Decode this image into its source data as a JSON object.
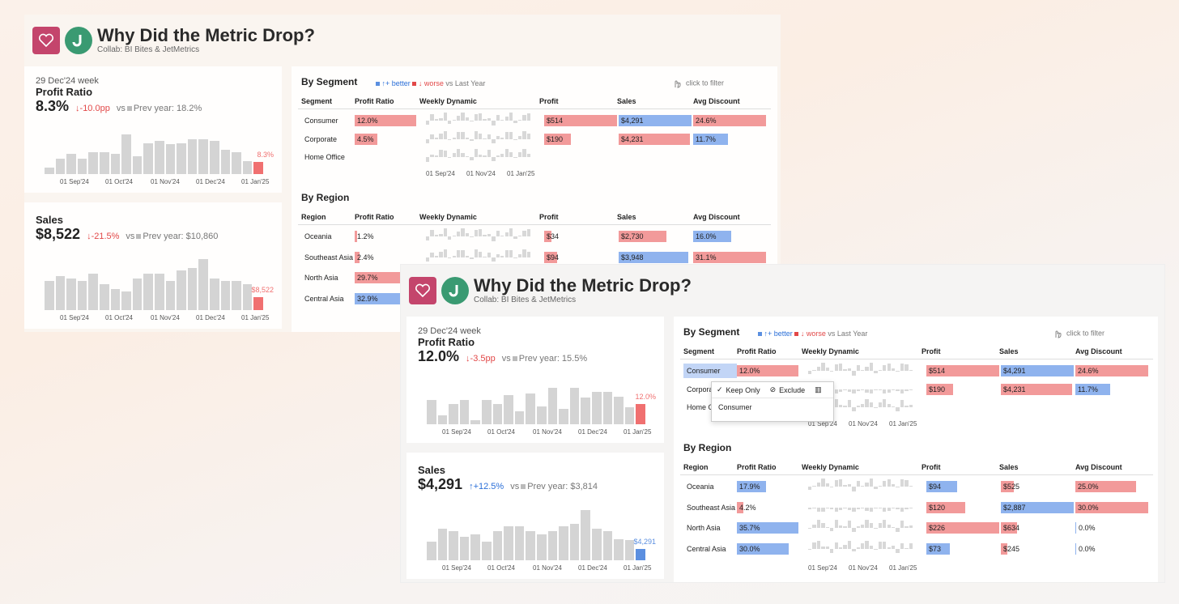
{
  "dashboard": {
    "title": "Why Did the Metric Drop?",
    "subtitle": "Collab: BI Bites & JetMetrics",
    "icons": {
      "favorite": "heart-icon",
      "logo": "j-logo-icon",
      "filter_hint": "hand-pointer-icon"
    }
  },
  "colors": {
    "worse": "#e24848",
    "better": "#2b6fd8",
    "bar_neutral": "#d4d4d4",
    "bar_worse": "#f29a9a",
    "bar_better": "#8fb3ee"
  },
  "legend": {
    "better": "↑+ better",
    "worse": "↓ worse",
    "suffix": "vs Last Year",
    "click_hint": "click to filter"
  },
  "table_headers": {
    "profit_ratio": "Profit Ratio",
    "weekly_dynamic": "Weekly Dynamic",
    "profit": "Profit",
    "sales": "Sales",
    "avg_discount": "Avg Discount"
  },
  "axis_ticks": [
    "01 Sep'24",
    "01 Nov'24",
    "01 Jan'25"
  ],
  "kpi_ticks": [
    "01 Sep'24",
    "01 Oct'24",
    "01 Nov'24",
    "01 Dec'24",
    "01 Jan'25"
  ],
  "screen_a": {
    "profit_kpi": {
      "week": "29 Dec'24 week",
      "title": "Profit Ratio",
      "value": "8.3%",
      "delta": "↓-10.0pp",
      "vs": "vs",
      "prev": "Prev year: 18.2%",
      "last_label": "8.3%",
      "bars": [
        0.15,
        0.35,
        0.45,
        0.35,
        0.5,
        0.5,
        0.45,
        0.9,
        0.4,
        0.7,
        0.75,
        0.68,
        0.7,
        0.78,
        0.78,
        0.75,
        0.55,
        0.5,
        0.3,
        0.28
      ]
    },
    "sales_kpi": {
      "week": "",
      "title": "Sales",
      "value": "$8,522",
      "delta": "↓-21.5%",
      "vs": "vs",
      "prev": "Prev year: $10,860",
      "last_label": "$8,522",
      "bars": [
        0.55,
        0.65,
        0.6,
        0.55,
        0.7,
        0.5,
        0.4,
        0.35,
        0.6,
        0.7,
        0.7,
        0.55,
        0.75,
        0.8,
        0.97,
        0.6,
        0.55,
        0.55,
        0.5,
        0.25
      ]
    },
    "segment": {
      "title": "By Segment",
      "col_label": "Segment",
      "rows": [
        {
          "name": "Consumer",
          "profit_ratio": "12.0%",
          "pr_w": 1.0,
          "pr_c": "worse",
          "profit": "$514",
          "p_w": 1.0,
          "p_c": "worse",
          "sales": "$4,291",
          "s_w": 1.0,
          "s_c": "better",
          "discount": "24.6%",
          "d_w": 1.0,
          "d_c": "worse"
        },
        {
          "name": "Corporate",
          "profit_ratio": "4.5%",
          "pr_w": 0.37,
          "pr_c": "worse",
          "profit": "$190",
          "p_w": 0.37,
          "p_c": "worse",
          "sales": "$4,231",
          "s_w": 0.98,
          "s_c": "worse",
          "discount": "11.7%",
          "d_w": 0.48,
          "d_c": "better"
        },
        {
          "name": "Home Office",
          "profit_ratio": "",
          "pr_w": 0,
          "pr_c": "worse",
          "profit": "",
          "p_w": 0,
          "p_c": "worse",
          "sales": "",
          "s_w": 0,
          "s_c": "worse",
          "discount": "",
          "d_w": 0,
          "d_c": "worse"
        }
      ]
    },
    "region": {
      "title": "By Region",
      "col_label": "Region",
      "rows": [
        {
          "name": "Oceania",
          "profit_ratio": "1.2%",
          "pr_w": 0.04,
          "pr_c": "worse",
          "profit": "$34",
          "p_w": 0.1,
          "p_c": "worse",
          "sales": "$2,730",
          "s_w": 0.65,
          "s_c": "worse",
          "discount": "16.0%",
          "d_w": 0.52,
          "d_c": "better"
        },
        {
          "name": "Southeast Asia",
          "profit_ratio": "2.4%",
          "pr_w": 0.08,
          "pr_c": "worse",
          "profit": "$94",
          "p_w": 0.18,
          "p_c": "worse",
          "sales": "$3,948",
          "s_w": 0.95,
          "s_c": "better",
          "discount": "31.1%",
          "d_w": 1.0,
          "d_c": "worse"
        },
        {
          "name": "North Asia",
          "profit_ratio": "29.7%",
          "pr_w": 0.9,
          "pr_c": "worse"
        },
        {
          "name": "Central Asia",
          "profit_ratio": "32.9%",
          "pr_w": 1.0,
          "pr_c": "better"
        }
      ]
    }
  },
  "screen_b": {
    "profit_kpi": {
      "week": "29 Dec'24 week",
      "title": "Profit Ratio",
      "value": "12.0%",
      "delta": "↓-3.5pp",
      "vs": "vs",
      "prev": "Prev year: 15.5%",
      "last_label": "12.0%",
      "bars": [
        0.55,
        0.2,
        0.45,
        0.55,
        0.1,
        0.55,
        0.45,
        0.65,
        0.3,
        0.7,
        0.4,
        0.82,
        0.35,
        0.82,
        0.6,
        0.72,
        0.72,
        0.62,
        0.38,
        0.45
      ]
    },
    "sales_kpi": {
      "week": "",
      "title": "Sales",
      "value": "$4,291",
      "delta": "↑+12.5%",
      "vs": "vs",
      "prev": "Prev year: $3,814",
      "last_label": "$4,291",
      "bars": [
        0.35,
        0.6,
        0.55,
        0.45,
        0.5,
        0.35,
        0.55,
        0.65,
        0.65,
        0.55,
        0.5,
        0.55,
        0.65,
        0.7,
        0.95,
        0.6,
        0.55,
        0.4,
        0.38,
        0.22
      ]
    },
    "segment": {
      "title": "By Segment",
      "col_label": "Segment",
      "rows": [
        {
          "name": "Consumer",
          "profit_ratio": "12.0%",
          "pr_w": 1.0,
          "pr_c": "worse",
          "profit": "$514",
          "p_w": 1.0,
          "p_c": "worse",
          "sales": "$4,291",
          "s_w": 1.0,
          "s_c": "better",
          "discount": "24.6%",
          "d_w": 1.0,
          "d_c": "worse"
        },
        {
          "name": "Corporate",
          "profit_ratio": "",
          "pr_w": 0,
          "pr_c": "worse",
          "profit": "$190",
          "p_w": 0.37,
          "p_c": "worse",
          "sales": "$4,231",
          "s_w": 0.98,
          "s_c": "worse",
          "discount": "11.7%",
          "d_w": 0.48,
          "d_c": "better"
        },
        {
          "name": "Home Office",
          "profit_ratio": "",
          "pr_w": 0,
          "pr_c": "worse",
          "profit": "",
          "p_w": 0,
          "p_c": "worse",
          "sales": "",
          "s_w": 0,
          "s_c": "worse",
          "discount": "",
          "d_w": 0,
          "d_c": "worse"
        }
      ]
    },
    "context_menu": {
      "keep_only": "Keep Only",
      "exclude": "Exclude",
      "selected": "Consumer",
      "icons": [
        "check-icon",
        "exclude-icon",
        "columns-icon"
      ]
    },
    "region": {
      "title": "By Region",
      "col_label": "Region",
      "rows": [
        {
          "name": "Oceania",
          "profit_ratio": "17.9%",
          "pr_w": 0.48,
          "pr_c": "better",
          "profit": "$94",
          "p_w": 0.42,
          "p_c": "better",
          "sales": "$525",
          "s_w": 0.18,
          "s_c": "worse",
          "discount": "25.0%",
          "d_w": 0.83,
          "d_c": "worse"
        },
        {
          "name": "Southeast Asia",
          "profit_ratio": "4.2%",
          "pr_w": 0.1,
          "pr_c": "worse",
          "profit": "$120",
          "p_w": 0.53,
          "p_c": "worse",
          "sales": "$2,887",
          "s_w": 1.0,
          "s_c": "better",
          "discount": "30.0%",
          "d_w": 1.0,
          "d_c": "worse"
        },
        {
          "name": "North Asia",
          "profit_ratio": "35.7%",
          "pr_w": 1.0,
          "pr_c": "better",
          "profit": "$226",
          "p_w": 1.0,
          "p_c": "worse",
          "sales": "$634",
          "s_w": 0.22,
          "s_c": "worse",
          "discount": "0.0%",
          "d_w": 0,
          "d_c": "better"
        },
        {
          "name": "Central Asia",
          "profit_ratio": "30.0%",
          "pr_w": 0.84,
          "pr_c": "better",
          "profit": "$73",
          "p_w": 0.32,
          "p_c": "better",
          "sales": "$245",
          "s_w": 0.09,
          "s_c": "worse",
          "discount": "0.0%",
          "d_w": 0,
          "d_c": "better"
        }
      ]
    }
  }
}
